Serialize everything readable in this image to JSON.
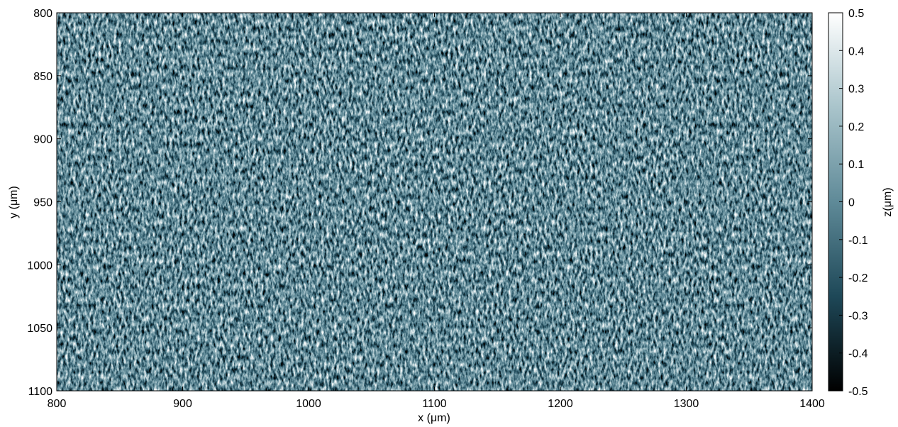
{
  "chart_data": {
    "type": "image",
    "xlabel": "x (μm)",
    "ylabel": "y (μm)",
    "colorbar_label": "z(μm)",
    "xlim": [
      800,
      1400
    ],
    "xticks": [
      800,
      900,
      1000,
      1100,
      1200,
      1300,
      1400
    ],
    "ylim": [
      800,
      1100
    ],
    "yticks": [
      800,
      850,
      900,
      950,
      1000,
      1050,
      1100
    ],
    "y_inverted": true,
    "zlim": [
      -0.5,
      0.5
    ],
    "zticks": [
      -0.5,
      -0.4,
      -0.3,
      -0.2,
      -0.1,
      0,
      0.1,
      0.2,
      0.3,
      0.4,
      0.5
    ],
    "colormap": [
      "#000000",
      "#1e4858",
      "#5f8a98",
      "#a9c4cb",
      "#ffffff"
    ]
  }
}
